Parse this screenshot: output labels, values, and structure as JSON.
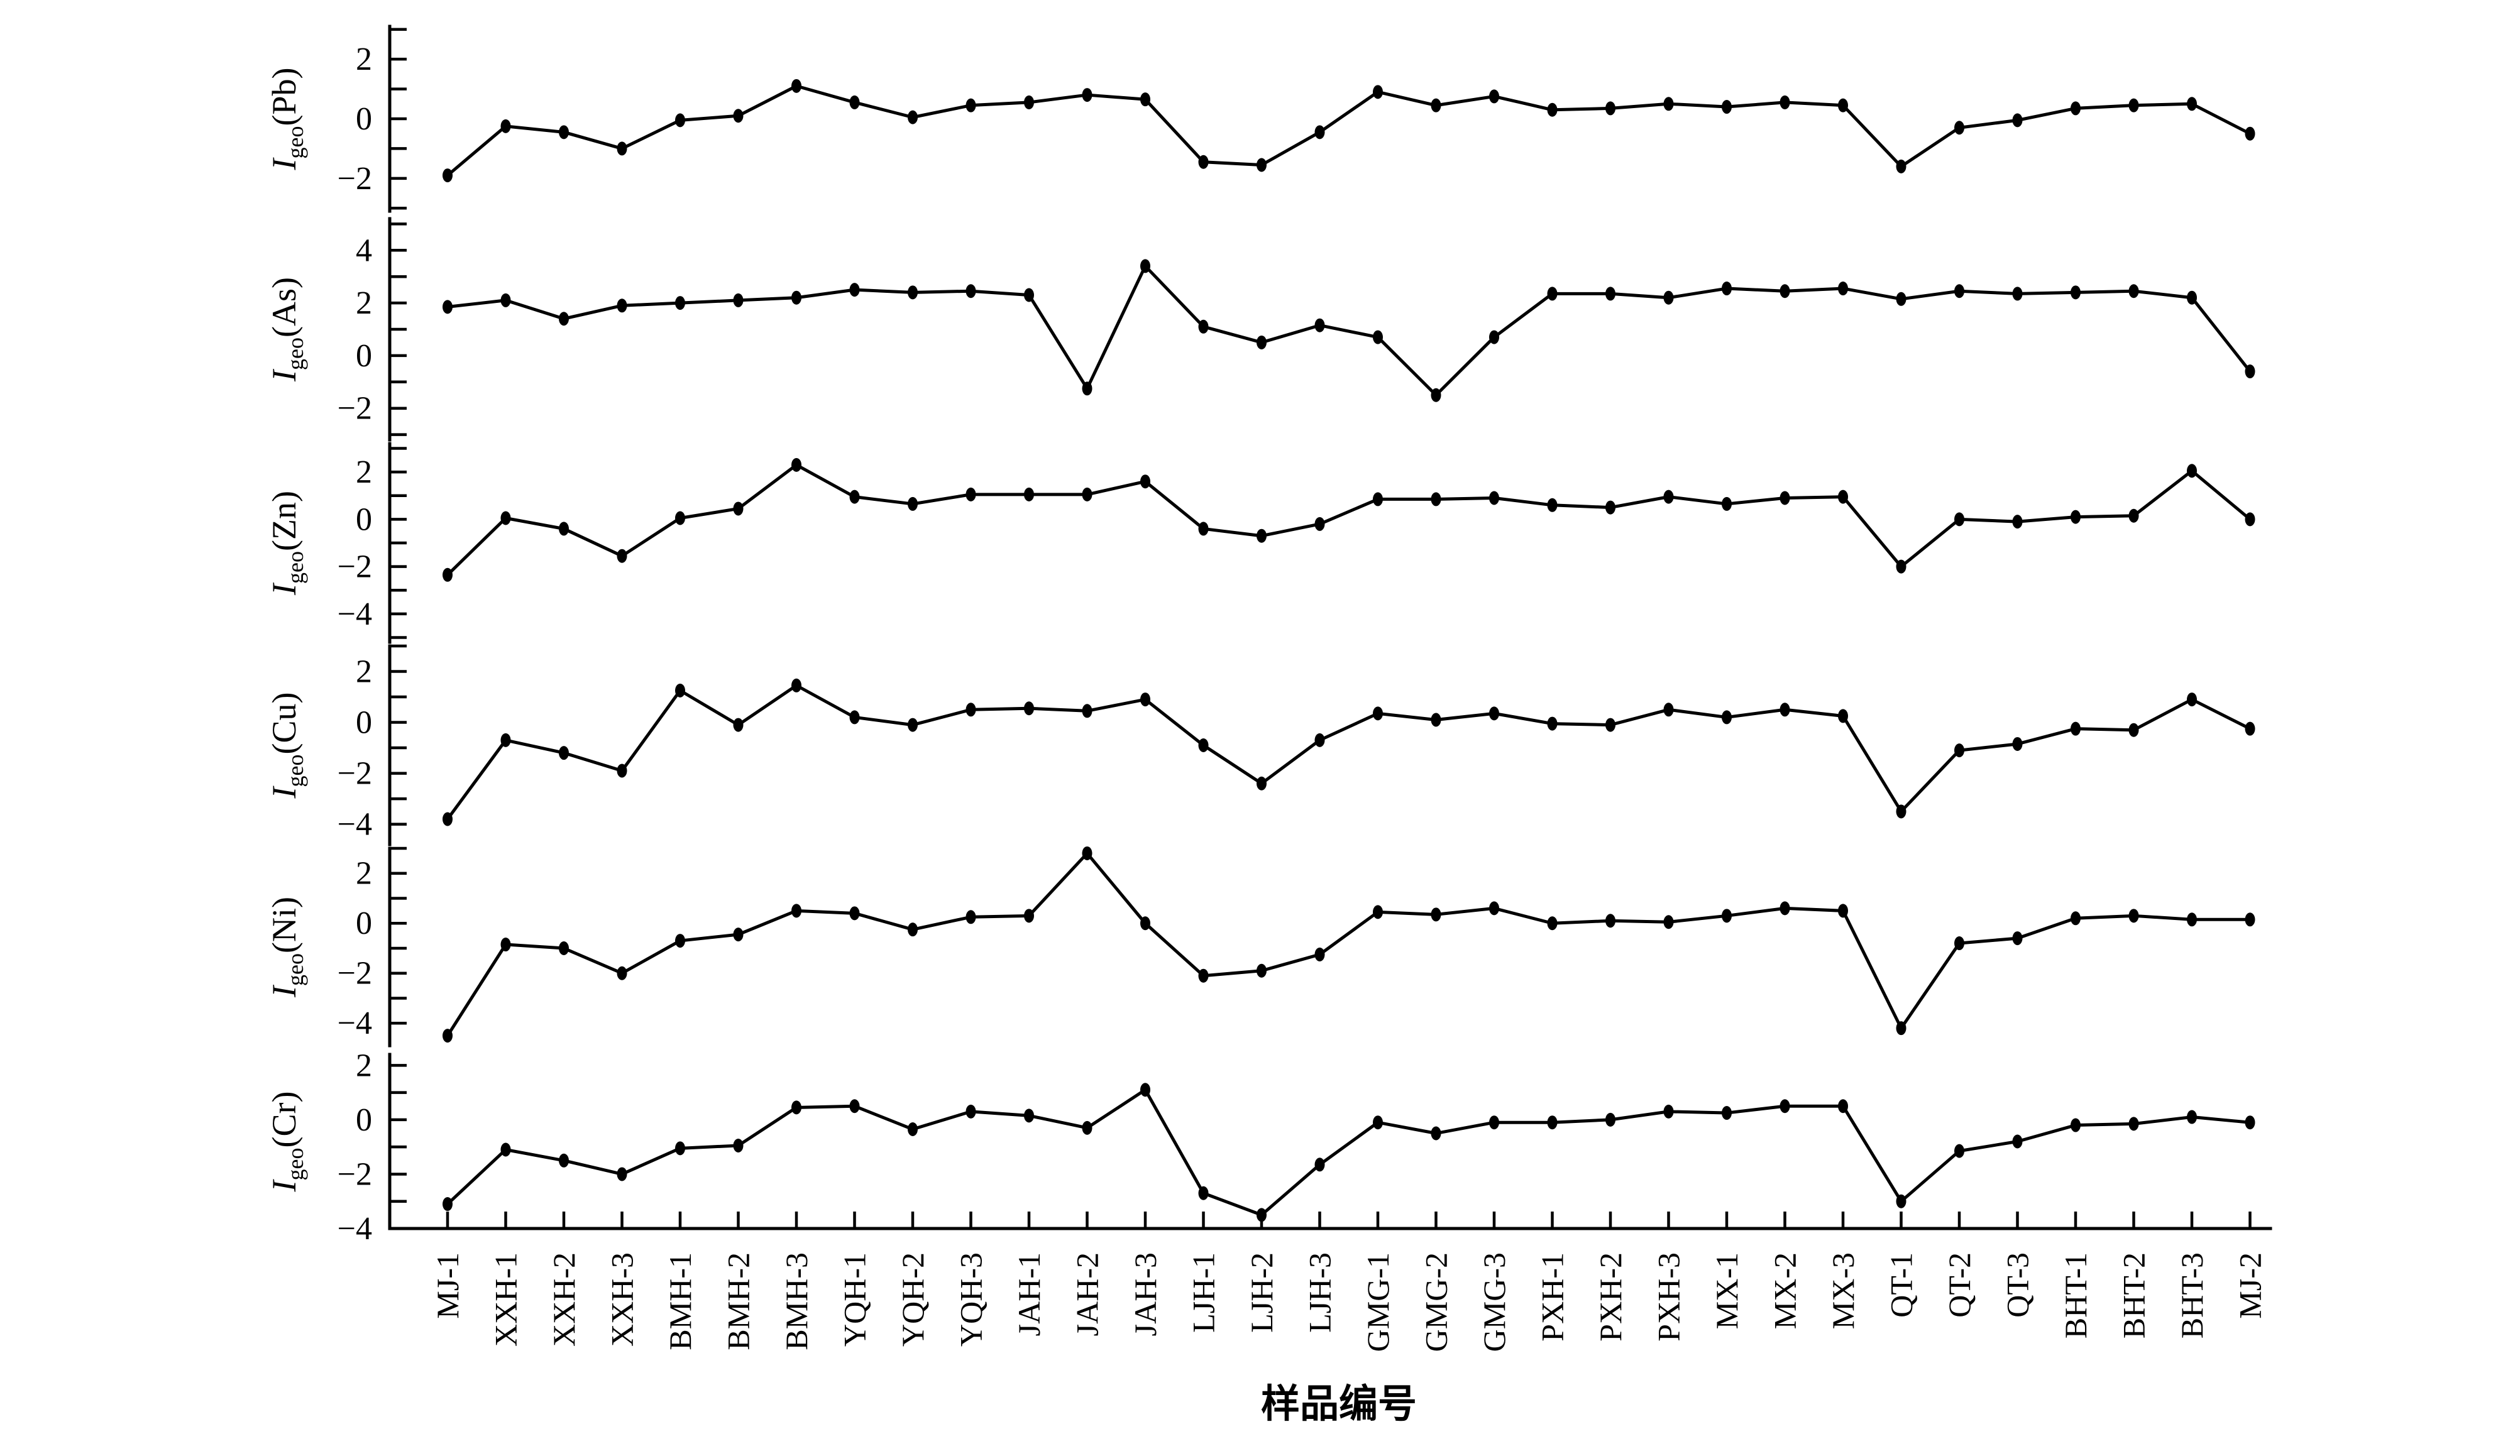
{
  "figure": {
    "background": "#ffffff",
    "line_color": "#000000",
    "marker": "filled-ellipse"
  },
  "chart_data": {
    "type": "line",
    "xlabel": "样品编号",
    "ylabel_prefix": "I",
    "ylabel_subscript": "geo",
    "legend": "none",
    "grid": false,
    "categories": [
      "MJ-1",
      "XXH-1",
      "XXH-2",
      "XXH-3",
      "BMH-1",
      "BMH-2",
      "BMH-3",
      "YQH-1",
      "YQH-2",
      "YQH-3",
      "JAH-1",
      "JAH-2",
      "JAH-3",
      "LJH-1",
      "LJH-2",
      "LJH-3",
      "GMG-1",
      "GMG-2",
      "GMG-3",
      "PXH-1",
      "PXH-2",
      "PXH-3",
      "MX-1",
      "MX-2",
      "MX-3",
      "QT-1",
      "QT-2",
      "QT-3",
      "BHT-1",
      "BHT-2",
      "BHT-3",
      "MJ-2"
    ],
    "panels": [
      {
        "element": "Pb",
        "ylabel": "Igeo(Pb)",
        "ylim": [
          -3.1,
          3.1
        ],
        "ytick_labels": [
          2,
          0,
          -2
        ],
        "values": [
          -1.9,
          -0.25,
          -0.45,
          -1.0,
          -0.05,
          0.1,
          1.1,
          0.55,
          0.05,
          0.45,
          0.55,
          0.8,
          0.65,
          -1.45,
          -1.55,
          -0.45,
          0.9,
          0.45,
          0.75,
          0.3,
          0.35,
          0.5,
          0.4,
          0.55,
          0.45,
          -1.6,
          -0.3,
          -0.05,
          0.35,
          0.45,
          0.5,
          -0.5
        ]
      },
      {
        "element": "As",
        "ylabel": "Igeo(As)",
        "ylim": [
          -3.2,
          5.2
        ],
        "ytick_labels": [
          4,
          2,
          0,
          -2
        ],
        "values": [
          1.85,
          2.1,
          1.4,
          1.9,
          2.0,
          2.1,
          2.2,
          2.5,
          2.4,
          2.45,
          2.3,
          -1.25,
          3.4,
          1.1,
          0.5,
          1.15,
          0.7,
          -1.5,
          0.7,
          2.35,
          2.35,
          2.2,
          2.55,
          2.45,
          2.55,
          2.15,
          2.45,
          2.35,
          2.4,
          2.45,
          2.2,
          -0.6
        ]
      },
      {
        "element": "Zn",
        "ylim": [
          -5.2,
          3.2
        ],
        "ylabel": "Igeo(Zn)",
        "ytick_labels": [
          2,
          0,
          -2,
          -4
        ],
        "values": [
          -2.35,
          0.05,
          -0.4,
          -1.55,
          0.05,
          0.45,
          2.3,
          0.95,
          0.65,
          1.05,
          1.05,
          1.05,
          1.6,
          -0.4,
          -0.7,
          -0.2,
          0.85,
          0.85,
          0.9,
          0.6,
          0.5,
          0.95,
          0.65,
          0.9,
          0.95,
          -2.0,
          0.0,
          -0.1,
          0.1,
          0.15,
          2.05,
          0.0
        ]
      },
      {
        "element": "Cu",
        "ylabel": "Igeo(Cu)",
        "ylim": [
          -4.8,
          3.0
        ],
        "ytick_labels": [
          2,
          0,
          -2,
          -4
        ],
        "values": [
          -3.8,
          -0.7,
          -1.2,
          -1.9,
          1.25,
          -0.1,
          1.45,
          0.2,
          -0.1,
          0.5,
          0.55,
          0.45,
          0.9,
          -0.9,
          -2.4,
          -0.7,
          0.35,
          0.1,
          0.35,
          -0.05,
          -0.1,
          0.5,
          0.2,
          0.5,
          0.25,
          -3.5,
          -1.1,
          -0.85,
          -0.25,
          -0.3,
          0.9,
          -0.25
        ]
      },
      {
        "element": "Ni",
        "ylabel": "Igeo(Ni)",
        "ylim": [
          -4.9,
          3.0
        ],
        "ytick_labels": [
          2,
          0,
          -2,
          -4
        ],
        "values": [
          -4.5,
          -0.85,
          -1.0,
          -2.0,
          -0.7,
          -0.45,
          0.5,
          0.4,
          -0.25,
          0.25,
          0.3,
          2.8,
          0.0,
          -2.1,
          -1.9,
          -1.25,
          0.45,
          0.35,
          0.6,
          0.0,
          0.1,
          0.05,
          0.3,
          0.6,
          0.5,
          -4.2,
          -0.8,
          -0.6,
          0.2,
          0.3,
          0.15,
          0.15
        ]
      },
      {
        "element": "Cr",
        "ylabel": "Igeo(Cr)",
        "ylim": [
          -4.0,
          2.4
        ],
        "ytick_labels": [
          2,
          0,
          -2,
          -4
        ],
        "values": [
          -3.1,
          -1.1,
          -1.5,
          -2.0,
          -1.05,
          -0.95,
          0.45,
          0.5,
          -0.35,
          0.3,
          0.15,
          -0.3,
          1.1,
          -2.7,
          -3.5,
          -1.65,
          -0.1,
          -0.5,
          -0.1,
          -0.1,
          0.0,
          0.3,
          0.25,
          0.5,
          0.5,
          -3.0,
          -1.15,
          -0.8,
          -0.2,
          -0.15,
          0.1,
          -0.1
        ]
      }
    ]
  }
}
